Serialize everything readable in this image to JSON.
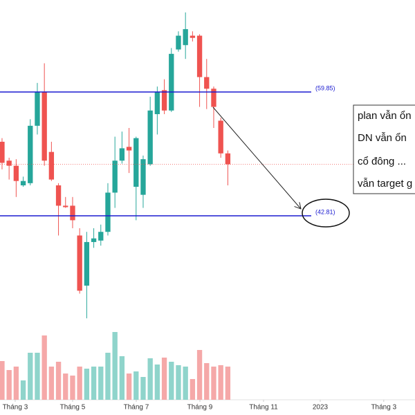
{
  "chart_data": {
    "type": "candlestick",
    "x": [
      0,
      1,
      2,
      3,
      4,
      5,
      6,
      7,
      8,
      9,
      10,
      11,
      12,
      13,
      14,
      15,
      16,
      17,
      18,
      19,
      20,
      21,
      22,
      23,
      24,
      25,
      26,
      27,
      28,
      29,
      30,
      31,
      32
    ],
    "open": [
      53.0,
      50.4,
      49.7,
      47.0,
      47.3,
      55.2,
      59.9,
      51.6,
      47.0,
      44.2,
      44.2,
      40.1,
      33.2,
      39.2,
      39.4,
      40.6,
      46.0,
      50.4,
      52.3,
      46.8,
      45.7,
      49.9,
      56.8,
      60.1,
      57.3,
      65.7,
      66.3,
      67.6,
      67.6,
      61.9,
      60.3,
      55.9,
      51.4
    ],
    "high": [
      53.5,
      50.8,
      50.6,
      48.2,
      56.1,
      61.1,
      63.8,
      53.0,
      47.3,
      45.4,
      45.4,
      41.1,
      40.6,
      41.1,
      41.6,
      47.3,
      53.7,
      54.4,
      54.9,
      53.7,
      51.1,
      59.2,
      60.6,
      61.6,
      65.9,
      68.2,
      70.8,
      68.2,
      67.8,
      64.4,
      60.6,
      56.3,
      51.8
    ],
    "low": [
      49.2,
      47.8,
      45.4,
      46.8,
      47.0,
      54.0,
      49.7,
      47.6,
      40.1,
      43.9,
      41.1,
      32.1,
      28.7,
      38.4,
      38.7,
      40.1,
      43.9,
      50.0,
      48.7,
      42.2,
      43.9,
      49.7,
      54.0,
      56.8,
      57.1,
      65.4,
      64.4,
      66.8,
      57.8,
      57.5,
      54.9,
      50.8,
      47.0
    ],
    "close": [
      50.1,
      49.7,
      47.6,
      47.6,
      55.2,
      59.9,
      50.4,
      47.8,
      44.2,
      44.0,
      42.2,
      32.5,
      39.2,
      39.7,
      40.6,
      46.0,
      50.4,
      52.1,
      51.8,
      53.5,
      50.6,
      57.3,
      59.9,
      57.3,
      65.1,
      67.6,
      68.5,
      67.3,
      61.9,
      60.3,
      57.8,
      51.4,
      49.9
    ],
    "volume": [
      56,
      43,
      48,
      28,
      68,
      68,
      93,
      48,
      55,
      38,
      35,
      48,
      45,
      48,
      48,
      68,
      98,
      63,
      38,
      41,
      33,
      60,
      51,
      61,
      55,
      50,
      48,
      30,
      72,
      53,
      48,
      50,
      48
    ],
    "up_color": "#26a69a",
    "down_color": "#ef5350",
    "up_volume_color": "#8fd4cb",
    "down_volume_color": "#f5a8a8",
    "xlim": [
      -0.29,
      58.53
    ],
    "ylim": [
      27.77,
      72.51
    ],
    "volume_lim": [
      0,
      120
    ],
    "xticks": [
      {
        "value": 1.86,
        "label": "Tháng 3"
      },
      {
        "value": 10.0,
        "label": "Tháng 5"
      },
      {
        "value": 19.02,
        "label": "Tháng 7"
      },
      {
        "value": 28.04,
        "label": "Tháng 9"
      },
      {
        "value": 37.06,
        "label": "Tháng 11"
      },
      {
        "value": 45.1,
        "label": "2023"
      },
      {
        "value": 54.1,
        "label": "Tháng 3"
      }
    ],
    "levels": [
      {
        "value": 59.85,
        "label": "(59.85)"
      },
      {
        "value": 42.81,
        "label": "(42.81)"
      }
    ],
    "level_color": "#1a1ad0",
    "annotations": [
      "plan vẫn ổn",
      "DN vẫn ổn",
      "cổ đông ...",
      "vẫn target g"
    ]
  }
}
